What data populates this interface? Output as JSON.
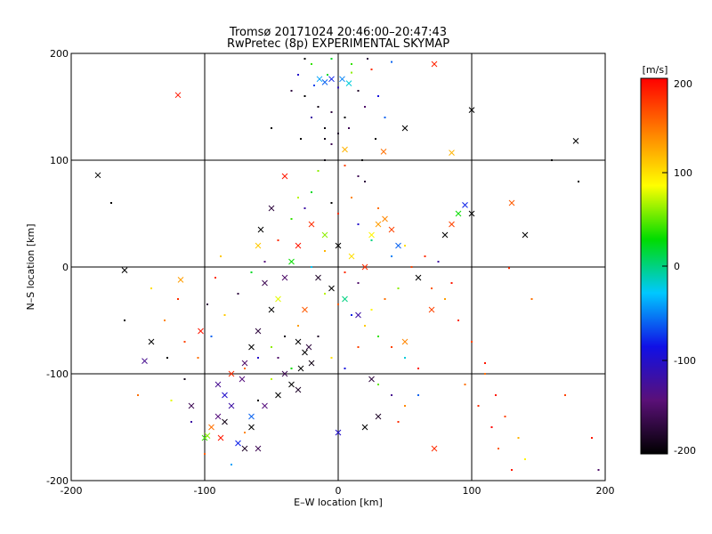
{
  "chart_data": {
    "type": "scatter",
    "title": "Tromsø 20171024 20:46:00–20:47:43",
    "subtitle": "RwPretec (8p) EXPERIMENTAL SKYMAP",
    "xlabel": "E–W location [km]",
    "ylabel": "N–S location [km]",
    "xlim": [
      -200,
      200
    ],
    "ylim": [
      -200,
      200
    ],
    "x_ticks": [
      "-200",
      "-100",
      "0",
      "100",
      "200"
    ],
    "y_ticks": [
      "-200",
      "-100",
      "0",
      "100",
      "200"
    ],
    "grid": true,
    "colorbar": {
      "label": "[m/s]",
      "range": [
        -200,
        200
      ],
      "ticks": [
        "200",
        "100",
        "0",
        "-100",
        "-200"
      ],
      "colormap": [
        "#000000",
        "#5a1078",
        "#1010e6",
        "#00c8ff",
        "#00dc00",
        "#ffff00",
        "#ff8000",
        "#ff0000"
      ]
    },
    "markers": [
      "dot",
      "cross"
    ],
    "points": [
      [
        -14,
        176,
        -40,
        "cross"
      ],
      [
        -10,
        173,
        -60,
        "cross"
      ],
      [
        -5,
        176,
        -80,
        "cross"
      ],
      [
        3,
        176,
        -50,
        "cross"
      ],
      [
        8,
        172,
        -20,
        "cross"
      ],
      [
        -18,
        170,
        -70,
        "dot"
      ],
      [
        -8,
        180,
        20,
        "dot"
      ],
      [
        0,
        168,
        -110,
        "dot"
      ],
      [
        10,
        182,
        60,
        "dot"
      ],
      [
        15,
        165,
        -180,
        "dot"
      ],
      [
        -25,
        160,
        -200,
        "dot"
      ],
      [
        -15,
        150,
        -190,
        "dot"
      ],
      [
        -5,
        145,
        -170,
        "dot"
      ],
      [
        5,
        140,
        -200,
        "dot"
      ],
      [
        20,
        150,
        -150,
        "dot"
      ],
      [
        -10,
        130,
        -195,
        "dot"
      ],
      [
        0,
        125,
        -180,
        "dot"
      ],
      [
        -5,
        115,
        -160,
        "dot"
      ],
      [
        5,
        110,
        120,
        "cross"
      ],
      [
        -20,
        190,
        40,
        "dot"
      ],
      [
        -30,
        180,
        -100,
        "dot"
      ],
      [
        25,
        185,
        180,
        "dot"
      ],
      [
        30,
        160,
        -90,
        "dot"
      ],
      [
        -35,
        165,
        -170,
        "dot"
      ],
      [
        -20,
        140,
        -120,
        "dot"
      ],
      [
        35,
        140,
        -60,
        "dot"
      ],
      [
        50,
        130,
        -200,
        "cross"
      ],
      [
        100,
        147,
        -200,
        "cross"
      ],
      [
        178,
        118,
        -200,
        "cross"
      ],
      [
        -120,
        161,
        190,
        "cross"
      ],
      [
        -180,
        86,
        -200,
        "cross"
      ],
      [
        72,
        190,
        185,
        "cross"
      ],
      [
        85,
        107,
        120,
        "cross"
      ],
      [
        34,
        108,
        150,
        "cross"
      ],
      [
        -50,
        130,
        -200,
        "dot"
      ],
      [
        -20,
        40,
        180,
        "cross"
      ],
      [
        -10,
        30,
        60,
        "cross"
      ],
      [
        0,
        20,
        -200,
        "cross"
      ],
      [
        10,
        10,
        100,
        "cross"
      ],
      [
        20,
        0,
        180,
        "cross"
      ],
      [
        -15,
        -10,
        -180,
        "cross"
      ],
      [
        -5,
        -20,
        -200,
        "cross"
      ],
      [
        5,
        -30,
        0,
        "cross"
      ],
      [
        -25,
        -40,
        160,
        "cross"
      ],
      [
        15,
        -45,
        -120,
        "cross"
      ],
      [
        30,
        40,
        130,
        "cross"
      ],
      [
        40,
        35,
        170,
        "cross"
      ],
      [
        25,
        30,
        90,
        "cross"
      ],
      [
        35,
        45,
        140,
        "cross"
      ],
      [
        45,
        20,
        -60,
        "cross"
      ],
      [
        -30,
        20,
        190,
        "cross"
      ],
      [
        -35,
        5,
        30,
        "cross"
      ],
      [
        -40,
        -10,
        -150,
        "cross"
      ],
      [
        -45,
        -30,
        80,
        "cross"
      ],
      [
        -50,
        -40,
        -200,
        "cross"
      ],
      [
        -60,
        -60,
        -170,
        "cross"
      ],
      [
        -65,
        -75,
        -200,
        "cross"
      ],
      [
        -70,
        -90,
        -150,
        "cross"
      ],
      [
        -80,
        -100,
        180,
        "cross"
      ],
      [
        -90,
        -110,
        -130,
        "cross"
      ],
      [
        -30,
        -70,
        -200,
        "cross"
      ],
      [
        -25,
        -80,
        -200,
        "cross"
      ],
      [
        -20,
        -90,
        -190,
        "cross"
      ],
      [
        -28,
        -95,
        -200,
        "cross"
      ],
      [
        -22,
        -75,
        -170,
        "cross"
      ],
      [
        -35,
        -110,
        -200,
        "cross"
      ],
      [
        -30,
        -115,
        -180,
        "cross"
      ],
      [
        -40,
        -100,
        -160,
        "cross"
      ],
      [
        -45,
        -120,
        -200,
        "cross"
      ],
      [
        -55,
        -130,
        -140,
        "cross"
      ],
      [
        -80,
        -130,
        -120,
        "cross"
      ],
      [
        -90,
        -140,
        -140,
        "cross"
      ],
      [
        -95,
        -150,
        150,
        "cross"
      ],
      [
        -88,
        -160,
        190,
        "cross"
      ],
      [
        -75,
        -165,
        -80,
        "cross"
      ],
      [
        -65,
        -150,
        -200,
        "cross"
      ],
      [
        -70,
        -170,
        -180,
        "cross"
      ],
      [
        -100,
        -160,
        40,
        "cross"
      ],
      [
        -110,
        -130,
        -160,
        "cross"
      ],
      [
        -85,
        -120,
        -100,
        "cross"
      ],
      [
        -140,
        -70,
        -200,
        "cross"
      ],
      [
        -145,
        -88,
        -130,
        "cross"
      ],
      [
        -160,
        -3,
        -200,
        "cross"
      ],
      [
        -103,
        -60,
        190,
        "cross"
      ],
      [
        -118,
        -12,
        130,
        "cross"
      ],
      [
        -72,
        -105,
        -140,
        "cross"
      ],
      [
        -65,
        -140,
        -60,
        "cross"
      ],
      [
        -60,
        -170,
        -160,
        "cross"
      ],
      [
        -85,
        -145,
        -190,
        "cross"
      ],
      [
        -98,
        -158,
        60,
        "cross"
      ],
      [
        60,
        -10,
        -200,
        "cross"
      ],
      [
        70,
        -40,
        170,
        "cross"
      ],
      [
        80,
        30,
        -200,
        "cross"
      ],
      [
        85,
        40,
        170,
        "cross"
      ],
      [
        90,
        50,
        30,
        "cross"
      ],
      [
        95,
        58,
        -80,
        "cross"
      ],
      [
        100,
        50,
        -200,
        "cross"
      ],
      [
        140,
        30,
        -200,
        "cross"
      ],
      [
        130,
        60,
        160,
        "cross"
      ],
      [
        50,
        -70,
        140,
        "cross"
      ],
      [
        0,
        -155,
        -100,
        "cross"
      ],
      [
        20,
        -150,
        -200,
        "cross"
      ],
      [
        30,
        -140,
        -180,
        "cross"
      ],
      [
        25,
        -105,
        -170,
        "cross"
      ],
      [
        72,
        -170,
        180,
        "cross"
      ],
      [
        -40,
        85,
        190,
        "cross"
      ],
      [
        -58,
        35,
        -200,
        "cross"
      ],
      [
        -50,
        55,
        -170,
        "cross"
      ],
      [
        -60,
        20,
        110,
        "cross"
      ],
      [
        -55,
        -15,
        -160,
        "cross"
      ],
      [
        -20,
        70,
        20,
        "dot"
      ],
      [
        -5,
        60,
        -200,
        "dot"
      ],
      [
        10,
        65,
        140,
        "dot"
      ],
      [
        20,
        80,
        -170,
        "dot"
      ],
      [
        -15,
        90,
        60,
        "dot"
      ],
      [
        0,
        50,
        180,
        "dot"
      ],
      [
        15,
        40,
        -100,
        "dot"
      ],
      [
        25,
        25,
        0,
        "dot"
      ],
      [
        -10,
        15,
        120,
        "dot"
      ],
      [
        -20,
        0,
        -30,
        "dot"
      ],
      [
        5,
        -5,
        180,
        "dot"
      ],
      [
        15,
        -15,
        -150,
        "dot"
      ],
      [
        -10,
        -25,
        70,
        "dot"
      ],
      [
        0,
        -35,
        160,
        "dot"
      ],
      [
        10,
        -45,
        -80,
        "dot"
      ],
      [
        20,
        -55,
        110,
        "dot"
      ],
      [
        30,
        -65,
        40,
        "dot"
      ],
      [
        40,
        -75,
        170,
        "dot"
      ],
      [
        50,
        -85,
        -20,
        "dot"
      ],
      [
        60,
        -95,
        190,
        "dot"
      ],
      [
        -30,
        -55,
        130,
        "dot"
      ],
      [
        -40,
        -65,
        -190,
        "dot"
      ],
      [
        -50,
        -75,
        60,
        "dot"
      ],
      [
        -60,
        -85,
        -100,
        "dot"
      ],
      [
        -70,
        -95,
        150,
        "dot"
      ],
      [
        70,
        -20,
        160,
        "dot"
      ],
      [
        80,
        -30,
        130,
        "dot"
      ],
      [
        90,
        -50,
        180,
        "dot"
      ],
      [
        100,
        -70,
        170,
        "dot"
      ],
      [
        110,
        -90,
        190,
        "dot"
      ],
      [
        95,
        -110,
        150,
        "dot"
      ],
      [
        105,
        -130,
        180,
        "dot"
      ],
      [
        115,
        -150,
        200,
        "dot"
      ],
      [
        120,
        -170,
        160,
        "dot"
      ],
      [
        130,
        -190,
        190,
        "dot"
      ],
      [
        125,
        -140,
        170,
        "dot"
      ],
      [
        135,
        -160,
        120,
        "dot"
      ],
      [
        140,
        -180,
        90,
        "dot"
      ],
      [
        118,
        -120,
        190,
        "dot"
      ],
      [
        110,
        -100,
        150,
        "dot"
      ],
      [
        40,
        10,
        -50,
        "dot"
      ],
      [
        50,
        20,
        100,
        "dot"
      ],
      [
        55,
        0,
        170,
        "dot"
      ],
      [
        65,
        10,
        180,
        "dot"
      ],
      [
        45,
        -20,
        60,
        "dot"
      ],
      [
        35,
        -30,
        150,
        "dot"
      ],
      [
        25,
        -40,
        90,
        "dot"
      ],
      [
        -25,
        55,
        -120,
        "dot"
      ],
      [
        -35,
        45,
        40,
        "dot"
      ],
      [
        -45,
        25,
        180,
        "dot"
      ],
      [
        -55,
        5,
        -140,
        "dot"
      ],
      [
        -65,
        -5,
        20,
        "dot"
      ],
      [
        -75,
        -25,
        -170,
        "dot"
      ],
      [
        -85,
        -45,
        110,
        "dot"
      ],
      [
        -95,
        -65,
        -60,
        "dot"
      ],
      [
        -105,
        -85,
        150,
        "dot"
      ],
      [
        -115,
        -105,
        -190,
        "dot"
      ],
      [
        -125,
        -125,
        80,
        "dot"
      ],
      [
        -110,
        -145,
        -120,
        "dot"
      ],
      [
        -100,
        -175,
        160,
        "dot"
      ],
      [
        -80,
        -185,
        -40,
        "dot"
      ],
      [
        -70,
        -155,
        140,
        "dot"
      ],
      [
        -60,
        -125,
        -200,
        "dot"
      ],
      [
        -50,
        -105,
        70,
        "dot"
      ],
      [
        -45,
        -85,
        -150,
        "dot"
      ],
      [
        -35,
        -95,
        30,
        "dot"
      ],
      [
        -15,
        -65,
        -180,
        "dot"
      ],
      [
        -5,
        -85,
        100,
        "dot"
      ],
      [
        5,
        -95,
        -90,
        "dot"
      ],
      [
        15,
        -75,
        170,
        "dot"
      ],
      [
        30,
        -110,
        50,
        "dot"
      ],
      [
        40,
        -120,
        -130,
        "dot"
      ],
      [
        50,
        -130,
        140,
        "dot"
      ],
      [
        60,
        -120,
        -60,
        "dot"
      ],
      [
        45,
        -145,
        180,
        "dot"
      ],
      [
        -10,
        100,
        -190,
        "dot"
      ],
      [
        5,
        95,
        170,
        "dot"
      ],
      [
        15,
        85,
        -160,
        "dot"
      ],
      [
        -30,
        65,
        70,
        "dot"
      ],
      [
        30,
        55,
        150,
        "dot"
      ],
      [
        -120,
        -30,
        180,
        "dot"
      ],
      [
        -130,
        -50,
        140,
        "dot"
      ],
      [
        -140,
        -20,
        100,
        "dot"
      ],
      [
        -115,
        -70,
        170,
        "dot"
      ],
      [
        -128,
        -85,
        -200,
        "dot"
      ],
      [
        -88,
        10,
        110,
        "dot"
      ],
      [
        -92,
        -10,
        180,
        "dot"
      ],
      [
        -98,
        -35,
        -170,
        "dot"
      ],
      [
        75,
        5,
        -120,
        "dot"
      ],
      [
        85,
        -15,
        190,
        "dot"
      ],
      [
        160,
        100,
        -200,
        "dot"
      ],
      [
        180,
        80,
        -200,
        "dot"
      ],
      [
        128,
        -1,
        180,
        "dot"
      ],
      [
        145,
        -30,
        150,
        "dot"
      ],
      [
        170,
        -120,
        170,
        "dot"
      ],
      [
        190,
        -160,
        190,
        "dot"
      ],
      [
        195,
        -190,
        -150,
        "dot"
      ],
      [
        -160,
        -50,
        -200,
        "dot"
      ],
      [
        -170,
        60,
        -200,
        "dot"
      ],
      [
        -150,
        -120,
        150,
        "dot"
      ],
      [
        10,
        190,
        40,
        "dot"
      ],
      [
        -5,
        195,
        20,
        "dot"
      ],
      [
        22,
        195,
        -170,
        "dot"
      ],
      [
        -25,
        195,
        -200,
        "dot"
      ],
      [
        40,
        192,
        -60,
        "dot"
      ],
      [
        -10,
        120,
        -190,
        "dot"
      ],
      [
        8,
        130,
        -160,
        "dot"
      ],
      [
        -28,
        120,
        -200,
        "dot"
      ],
      [
        28,
        120,
        -200,
        "dot"
      ],
      [
        18,
        100,
        -200,
        "dot"
      ]
    ]
  }
}
